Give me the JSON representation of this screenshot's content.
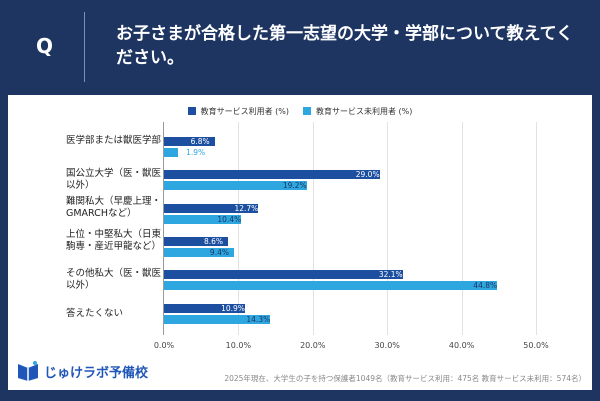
{
  "header": {
    "q_label": "Q",
    "title": "お子さまが合格した第一志望の大学・学部について教えてください。"
  },
  "chart_data": {
    "type": "bar",
    "orientation": "horizontal",
    "categories": [
      "医学部または獣医学部",
      "国公立大学（医・獣医以外）",
      "難関私大（早慶上理・GMARCHなど）",
      "上位・中堅私大（日東駒専・産近甲龍など）",
      "その他私大（医・獣医以外）",
      "答えたくない"
    ],
    "series": [
      {
        "name": "教育サービス利用者 (%)",
        "color": "#1c4fa0",
        "values": [
          6.8,
          29.0,
          12.7,
          8.6,
          32.1,
          10.9
        ]
      },
      {
        "name": "教育サービス未利用者 (%)",
        "color": "#2ea7e0",
        "values": [
          1.9,
          19.2,
          10.4,
          9.4,
          44.8,
          14.3
        ]
      }
    ],
    "xlim": [
      0,
      50
    ],
    "xticks": [
      "0.0%",
      "10.0%",
      "20.0%",
      "30.0%",
      "40.0%",
      "50.0%"
    ],
    "legend_position": "top",
    "grid": true
  },
  "footer": {
    "note": "2025年現在、大学生の子を持つ保護者1049名（教育サービス利用：475名 教育サービス未利用：574名）",
    "logo_text": "じゅけラボ予備校"
  }
}
